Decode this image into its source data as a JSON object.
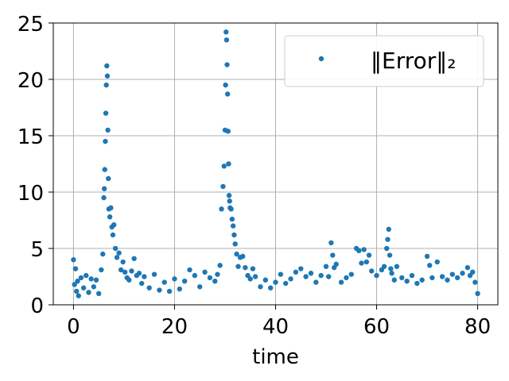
{
  "chart_data": {
    "type": "scatter",
    "title": "",
    "xlabel": "time",
    "ylabel": "",
    "xlim": [
      -4,
      84
    ],
    "ylim": [
      0,
      25
    ],
    "xticks": [
      0,
      20,
      40,
      60,
      80
    ],
    "yticks": [
      0,
      5,
      10,
      15,
      20,
      25
    ],
    "xtick_labels": [
      "0",
      "20",
      "40",
      "60",
      "80"
    ],
    "ytick_labels": [
      "0",
      "5",
      "10",
      "15",
      "20",
      "25"
    ],
    "grid": true,
    "legend_position": "top-right",
    "series": [
      {
        "name": "‖Error‖₂",
        "color": "#1f77b4",
        "marker": "dot",
        "x": [
          0.0,
          0.2,
          0.4,
          0.6,
          0.8,
          1.0,
          1.5,
          2.0,
          2.5,
          3.0,
          3.5,
          4.0,
          4.5,
          5.0,
          5.5,
          5.8,
          6.0,
          6.1,
          6.2,
          6.3,
          6.4,
          6.5,
          6.6,
          6.7,
          6.8,
          6.9,
          7.0,
          7.2,
          7.4,
          7.6,
          7.8,
          8.0,
          8.3,
          8.6,
          9.0,
          9.4,
          9.8,
          10.2,
          10.6,
          11.0,
          11.5,
          12.0,
          12.5,
          13.0,
          13.5,
          14.0,
          15.0,
          16.0,
          17.0,
          18.0,
          19.0,
          20.0,
          21.0,
          22.0,
          23.0,
          24.0,
          25.0,
          26.0,
          27.0,
          28.0,
          28.5,
          29.0,
          29.3,
          29.6,
          29.8,
          30.0,
          30.1,
          30.2,
          30.3,
          30.4,
          30.5,
          30.6,
          30.7,
          30.8,
          30.9,
          31.0,
          31.2,
          31.4,
          31.6,
          31.8,
          32.0,
          32.3,
          32.6,
          33.0,
          33.5,
          34.0,
          34.5,
          35.0,
          35.5,
          36.0,
          37.0,
          38.0,
          39.0,
          40.0,
          41.0,
          42.0,
          43.0,
          44.0,
          45.0,
          46.0,
          47.0,
          48.0,
          49.0,
          50.0,
          50.5,
          51.0,
          51.3,
          51.6,
          52.0,
          53.0,
          54.0,
          55.0,
          56.0,
          56.5,
          57.0,
          57.5,
          58.0,
          58.5,
          59.0,
          60.0,
          61.0,
          61.5,
          62.0,
          62.2,
          62.4,
          62.6,
          62.8,
          63.0,
          63.5,
          64.0,
          65.0,
          66.0,
          67.0,
          68.0,
          69.0,
          70.0,
          70.5,
          71.0,
          72.0,
          73.0,
          74.0,
          75.0,
          76.0,
          77.0,
          78.0,
          78.5,
          79.0,
          79.5,
          80.0
        ],
        "y": [
          4.0,
          1.8,
          3.2,
          1.2,
          2.1,
          0.8,
          2.4,
          1.5,
          2.6,
          1.1,
          2.3,
          1.6,
          2.2,
          1.0,
          3.1,
          4.5,
          9.5,
          10.3,
          12.0,
          14.5,
          17.0,
          19.5,
          21.2,
          20.3,
          15.5,
          11.2,
          8.5,
          7.8,
          8.6,
          6.9,
          6.2,
          7.1,
          5.0,
          4.2,
          4.6,
          3.1,
          3.8,
          2.9,
          2.4,
          2.2,
          3.0,
          4.1,
          2.6,
          2.8,
          1.9,
          2.5,
          1.5,
          2.7,
          1.3,
          2.0,
          1.2,
          2.3,
          1.4,
          2.1,
          3.1,
          2.6,
          1.6,
          2.9,
          2.4,
          2.1,
          2.7,
          3.5,
          8.5,
          10.5,
          12.3,
          15.5,
          19.5,
          24.2,
          23.5,
          21.3,
          18.7,
          15.4,
          12.5,
          9.7,
          9.2,
          8.6,
          8.5,
          7.6,
          7.0,
          6.2,
          5.4,
          4.5,
          3.4,
          4.2,
          4.3,
          3.3,
          2.6,
          2.3,
          3.2,
          2.5,
          1.6,
          2.2,
          1.5,
          2.0,
          2.7,
          1.9,
          2.3,
          2.9,
          3.2,
          2.5,
          2.8,
          2.0,
          2.6,
          3.4,
          2.5,
          5.5,
          4.4,
          3.3,
          3.6,
          2.0,
          2.4,
          2.7,
          5.0,
          4.8,
          3.7,
          4.9,
          3.8,
          4.4,
          3.0,
          2.6,
          3.1,
          3.4,
          5.0,
          5.8,
          6.7,
          4.4,
          3.2,
          2.8,
          2.2,
          3.4,
          2.4,
          2.1,
          2.6,
          1.9,
          2.2,
          4.3,
          3.5,
          2.4,
          3.8,
          2.5,
          2.2,
          2.7,
          2.4,
          2.8,
          3.3,
          2.6,
          2.9,
          2.0,
          1.0
        ]
      }
    ]
  }
}
